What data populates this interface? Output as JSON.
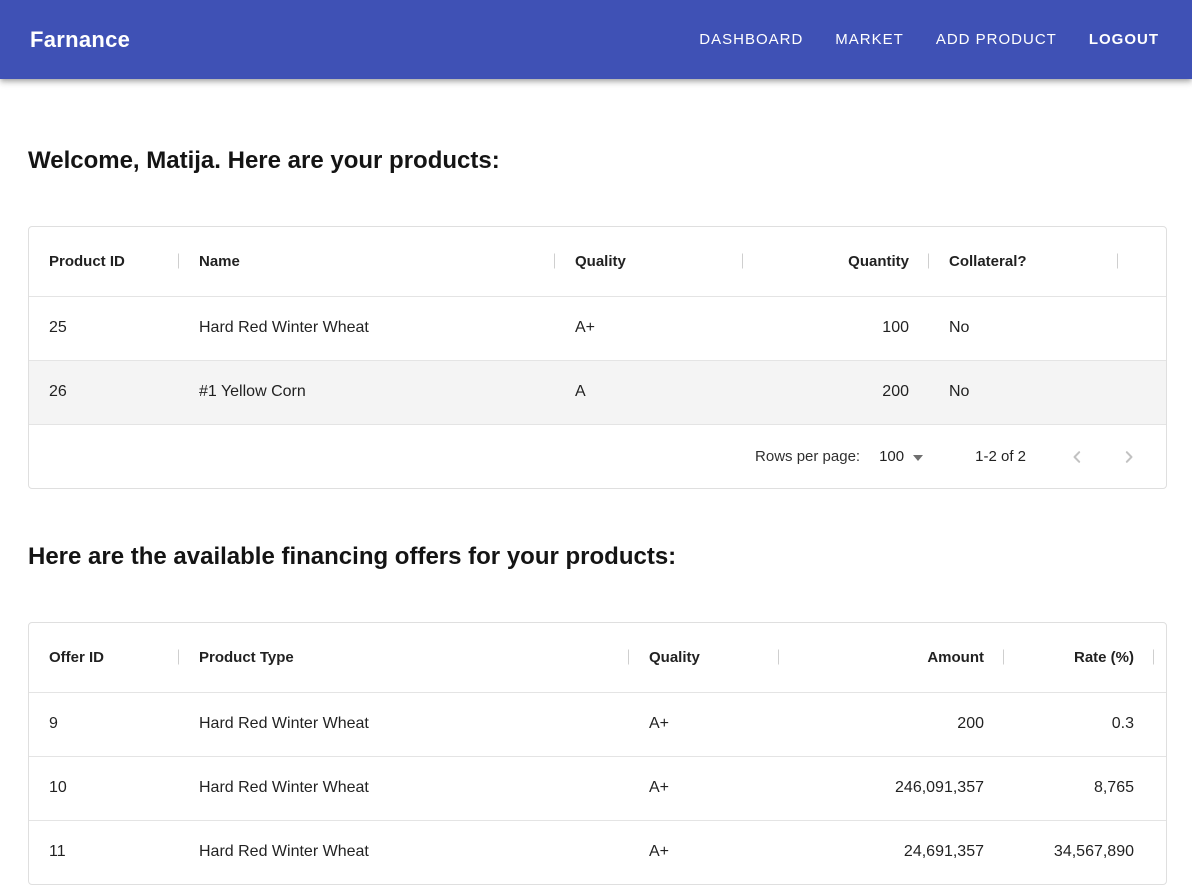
{
  "app_bar": {
    "brand": "Farnance",
    "nav_items": [
      {
        "label": "DASHBOARD"
      },
      {
        "label": "MARKET"
      },
      {
        "label": "ADD PRODUCT"
      },
      {
        "label": "LOGOUT"
      }
    ]
  },
  "colors": {
    "app_bar_bg": "#3F51B5",
    "highlighted_row_bg": "#f4f4f4",
    "card_border": "#dfdfdf",
    "disabled_icon": "#c2c2c2"
  },
  "products_section": {
    "heading": "Welcome, Matija. Here are your products:",
    "table": {
      "columns": [
        "Product ID",
        "Name",
        "Quality",
        "Quantity",
        "Collateral?"
      ],
      "rows": [
        [
          "25",
          "Hard Red Winter Wheat",
          "A+",
          "100",
          "No"
        ],
        [
          "26",
          "#1 Yellow Corn",
          "A",
          "200",
          "No"
        ]
      ],
      "highlighted_row_index": 1,
      "footer": {
        "rows_per_page_label": "Rows per page:",
        "rows_per_page_value": "100",
        "range_label": "1-2 of 2"
      }
    }
  },
  "offers_section": {
    "heading": "Here are the available financing offers for your products:",
    "table": {
      "columns": [
        "Offer ID",
        "Product Type",
        "Quality",
        "Amount",
        "Rate (%)"
      ],
      "rows": [
        [
          "9",
          "Hard Red Winter Wheat",
          "A+",
          "200",
          "0.3"
        ],
        [
          "10",
          "Hard Red Winter Wheat",
          "A+",
          "246,091,357",
          "8,765"
        ],
        [
          "11",
          "Hard Red Winter Wheat",
          "A+",
          "24,691,357",
          "34,567,890"
        ]
      ]
    }
  }
}
